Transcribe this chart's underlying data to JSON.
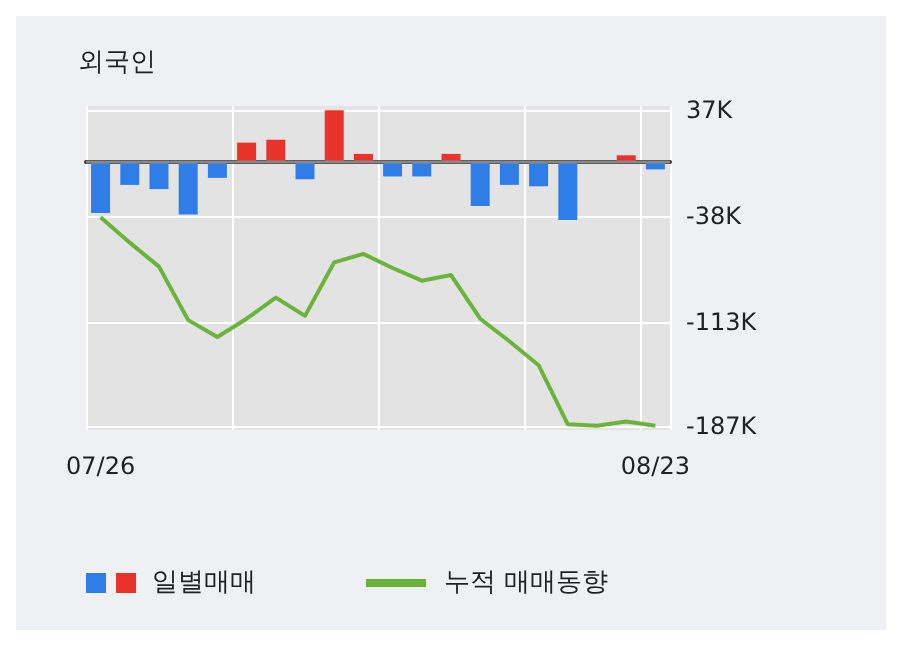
{
  "chart_data": {
    "type": "bar",
    "title": "외국인",
    "categories": [
      "07/26",
      null,
      null,
      null,
      null,
      null,
      null,
      null,
      null,
      null,
      null,
      null,
      null,
      null,
      null,
      null,
      null,
      null,
      null,
      "08/23"
    ],
    "series": [
      {
        "name": "일별매매",
        "color": "#2f7ee8",
        "colors": [
          "#2f7ee8",
          "#2f7ee8",
          "#2f7ee8",
          "#2f7ee8",
          "#2f7ee8",
          "#e8332a",
          "#e8332a",
          "#2f7ee8",
          "#e8332a",
          "#e8332a",
          "#2f7ee8",
          "#2f7ee8",
          "#e8332a",
          "#2f7ee8",
          "#2f7ee8",
          "#2f7ee8",
          "#2f7ee8",
          "#2f7ee8",
          "#e8332a",
          "#2f7ee8"
        ],
        "values": [
          -36,
          -16,
          -19,
          -37,
          -11,
          14,
          16,
          -12,
          37,
          6,
          -10,
          -10,
          6,
          -31,
          -16,
          -17,
          -41,
          0,
          5,
          -5
        ]
      },
      {
        "name": "누적 매매동향",
        "type": "line",
        "color": "#6ab43c",
        "values": [
          -39,
          -57,
          -74,
          -112,
          -124,
          -111,
          -96,
          -109,
          -71,
          -65,
          -75,
          -84,
          -80,
          -111,
          -127,
          -144,
          -186,
          -187,
          -184,
          -187
        ]
      }
    ],
    "ylim": [
      -190,
      40
    ],
    "yticks": [
      {
        "value": 37,
        "label": "37K"
      },
      {
        "value": -38,
        "label": "-38K"
      },
      {
        "value": -113,
        "label": "-113K"
      },
      {
        "value": -187,
        "label": "-187K"
      }
    ],
    "grid": true,
    "legend": "bottom left",
    "marker": "none",
    "line_style": "solid"
  }
}
